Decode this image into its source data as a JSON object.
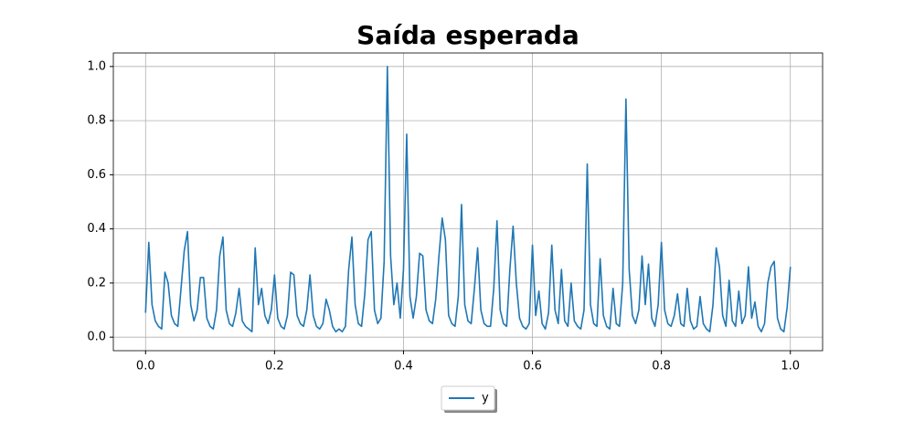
{
  "chart_data": {
    "type": "line",
    "title": "Saída esperada",
    "x": [
      0,
      0.005,
      0.01,
      0.015,
      0.02,
      0.025,
      0.03,
      0.035,
      0.04,
      0.045,
      0.05,
      0.055,
      0.06,
      0.065,
      0.07,
      0.075,
      0.08,
      0.085,
      0.09,
      0.095,
      0.1,
      0.105,
      0.11,
      0.115,
      0.12,
      0.125,
      0.13,
      0.135,
      0.14,
      0.145,
      0.15,
      0.155,
      0.16,
      0.165,
      0.17,
      0.175,
      0.18,
      0.185,
      0.19,
      0.195,
      0.2,
      0.205,
      0.21,
      0.215,
      0.22,
      0.225,
      0.23,
      0.235,
      0.24,
      0.245,
      0.25,
      0.255,
      0.26,
      0.265,
      0.27,
      0.275,
      0.28,
      0.285,
      0.29,
      0.295,
      0.3,
      0.305,
      0.31,
      0.315,
      0.32,
      0.325,
      0.33,
      0.335,
      0.34,
      0.345,
      0.35,
      0.355,
      0.36,
      0.365,
      0.37,
      0.375,
      0.38,
      0.385,
      0.39,
      0.395,
      0.4,
      0.405,
      0.41,
      0.415,
      0.42,
      0.425,
      0.43,
      0.435,
      0.44,
      0.445,
      0.45,
      0.455,
      0.46,
      0.465,
      0.47,
      0.475,
      0.48,
      0.485,
      0.49,
      0.495,
      0.5,
      0.505,
      0.51,
      0.515,
      0.52,
      0.525,
      0.53,
      0.535,
      0.54,
      0.545,
      0.55,
      0.555,
      0.56,
      0.565,
      0.57,
      0.575,
      0.58,
      0.585,
      0.59,
      0.595,
      0.6,
      0.605,
      0.61,
      0.615,
      0.62,
      0.625,
      0.63,
      0.635,
      0.64,
      0.645,
      0.65,
      0.655,
      0.66,
      0.665,
      0.67,
      0.675,
      0.68,
      0.685,
      0.69,
      0.695,
      0.7,
      0.705,
      0.71,
      0.715,
      0.72,
      0.725,
      0.73,
      0.735,
      0.74,
      0.745,
      0.75,
      0.755,
      0.76,
      0.765,
      0.77,
      0.775,
      0.78,
      0.785,
      0.79,
      0.795,
      0.8,
      0.805,
      0.81,
      0.815,
      0.82,
      0.825,
      0.83,
      0.835,
      0.84,
      0.845,
      0.85,
      0.855,
      0.86,
      0.865,
      0.87,
      0.875,
      0.88,
      0.885,
      0.89,
      0.895,
      0.9,
      0.905,
      0.91,
      0.915,
      0.92,
      0.925,
      0.93,
      0.935,
      0.94,
      0.945,
      0.95,
      0.955,
      0.96,
      0.965,
      0.97,
      0.975,
      0.98,
      0.985,
      0.99,
      0.995,
      1
    ],
    "series": [
      {
        "name": "y",
        "color": "#1f77b4",
        "values": [
          0.09,
          0.35,
          0.12,
          0.06,
          0.04,
          0.03,
          0.24,
          0.2,
          0.08,
          0.05,
          0.04,
          0.18,
          0.32,
          0.39,
          0.12,
          0.06,
          0.1,
          0.22,
          0.22,
          0.07,
          0.04,
          0.03,
          0.1,
          0.3,
          0.37,
          0.1,
          0.05,
          0.04,
          0.09,
          0.18,
          0.06,
          0.04,
          0.03,
          0.02,
          0.33,
          0.12,
          0.18,
          0.08,
          0.05,
          0.1,
          0.23,
          0.07,
          0.04,
          0.03,
          0.08,
          0.24,
          0.23,
          0.08,
          0.05,
          0.04,
          0.1,
          0.23,
          0.08,
          0.04,
          0.03,
          0.05,
          0.14,
          0.1,
          0.04,
          0.02,
          0.03,
          0.02,
          0.04,
          0.25,
          0.37,
          0.12,
          0.05,
          0.04,
          0.16,
          0.36,
          0.39,
          0.1,
          0.05,
          0.07,
          0.28,
          1.0,
          0.3,
          0.12,
          0.2,
          0.07,
          0.25,
          0.75,
          0.15,
          0.07,
          0.15,
          0.31,
          0.3,
          0.1,
          0.06,
          0.05,
          0.14,
          0.3,
          0.44,
          0.36,
          0.08,
          0.05,
          0.04,
          0.15,
          0.49,
          0.12,
          0.06,
          0.05,
          0.18,
          0.33,
          0.1,
          0.05,
          0.04,
          0.04,
          0.18,
          0.43,
          0.1,
          0.05,
          0.04,
          0.25,
          0.41,
          0.2,
          0.07,
          0.04,
          0.03,
          0.05,
          0.34,
          0.08,
          0.17,
          0.05,
          0.03,
          0.09,
          0.34,
          0.1,
          0.05,
          0.25,
          0.06,
          0.04,
          0.2,
          0.06,
          0.04,
          0.03,
          0.1,
          0.64,
          0.12,
          0.05,
          0.04,
          0.29,
          0.08,
          0.04,
          0.03,
          0.18,
          0.05,
          0.04,
          0.2,
          0.88,
          0.25,
          0.08,
          0.05,
          0.1,
          0.3,
          0.12,
          0.27,
          0.07,
          0.04,
          0.12,
          0.35,
          0.1,
          0.05,
          0.04,
          0.08,
          0.16,
          0.05,
          0.04,
          0.18,
          0.06,
          0.03,
          0.04,
          0.15,
          0.05,
          0.03,
          0.02,
          0.12,
          0.33,
          0.26,
          0.08,
          0.04,
          0.21,
          0.06,
          0.04,
          0.17,
          0.05,
          0.08,
          0.26,
          0.07,
          0.13,
          0.04,
          0.02,
          0.05,
          0.2,
          0.26,
          0.28,
          0.07,
          0.03,
          0.02,
          0.11,
          0.26
        ]
      }
    ],
    "xlim": [
      -0.05,
      1.05
    ],
    "ylim": [
      -0.05,
      1.05
    ],
    "xticks": [
      {
        "value": 0,
        "label": "0.0"
      },
      0.2,
      0.4,
      0.6,
      0.8,
      {
        "value": 1,
        "label": "1.0"
      }
    ],
    "yticks": [
      {
        "value": 0,
        "label": "0.0"
      },
      0.2,
      0.4,
      0.6,
      0.8,
      {
        "value": 1,
        "label": "1.0"
      }
    ],
    "grid": true,
    "legend": "below"
  }
}
